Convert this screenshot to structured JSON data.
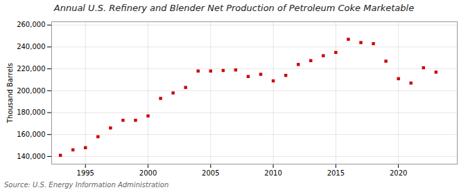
{
  "chart_data": {
    "type": "scatter",
    "title": "Annual U.S. Refinery and Blender Net Production of Petroleum Coke Marketable",
    "ylabel": "Thousand Barrels",
    "source": "Source: U.S. Energy Information Administration",
    "x": [
      1993,
      1994,
      1995,
      1996,
      1997,
      1998,
      1999,
      2000,
      2001,
      2002,
      2003,
      2004,
      2005,
      2006,
      2007,
      2008,
      2009,
      2010,
      2011,
      2012,
      2013,
      2014,
      2015,
      2016,
      2017,
      2018,
      2019,
      2020,
      2021,
      2022,
      2023
    ],
    "values": [
      141000,
      146000,
      148000,
      158000,
      166000,
      173000,
      173000,
      177000,
      193000,
      198000,
      203000,
      218000,
      218000,
      218500,
      219000,
      213000,
      215000,
      209000,
      214000,
      224000,
      227500,
      232000,
      235000,
      247000,
      244000,
      243000,
      227000,
      211000,
      207000,
      221000,
      217000
    ],
    "color": "#cc0000",
    "marker": "square",
    "xlim": [
      1992.3,
      2024.7
    ],
    "xticks": [
      1995,
      2000,
      2005,
      2010,
      2015,
      2020
    ],
    "ylim": [
      133000,
      263000
    ],
    "yticks": [
      {
        "value": 140000,
        "label": "140,000"
      },
      {
        "value": 160000,
        "label": "160,000"
      },
      {
        "value": 180000,
        "label": "180,000"
      },
      {
        "value": 200000,
        "label": "200,000"
      },
      {
        "value": 220000,
        "label": "220,000"
      },
      {
        "value": 240000,
        "label": "240,000"
      },
      {
        "value": 260000,
        "label": "260,000"
      }
    ],
    "grid": true
  }
}
